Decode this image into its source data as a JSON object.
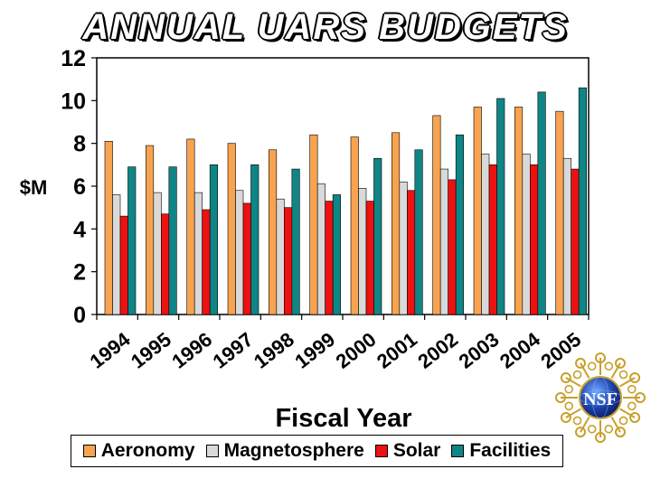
{
  "chart_data": {
    "type": "bar",
    "title": "ANNUAL UARS BUDGETS",
    "xlabel": "Fiscal Year",
    "ylabel": "$M",
    "ylim": [
      0,
      12
    ],
    "yticks": [
      "0",
      "2",
      "4",
      "6",
      "8",
      "10",
      "12"
    ],
    "categories": [
      "1994",
      "1995",
      "1996",
      "1997",
      "1998",
      "1999",
      "2000",
      "2001",
      "2002",
      "2003",
      "2004",
      "2005"
    ],
    "series": [
      {
        "name": "Aeronomy",
        "color": "#f7a350",
        "values": [
          8.1,
          7.9,
          8.2,
          8.0,
          7.7,
          8.4,
          8.3,
          8.5,
          9.3,
          9.7,
          9.7,
          9.5
        ]
      },
      {
        "name": "Magnetosphere",
        "color": "#d9d9d9",
        "values": [
          5.6,
          5.7,
          5.7,
          5.8,
          5.4,
          6.1,
          5.9,
          6.2,
          6.8,
          7.5,
          7.5,
          7.3
        ]
      },
      {
        "name": "Solar",
        "color": "#ee1111",
        "values": [
          4.6,
          4.7,
          4.9,
          5.2,
          5.0,
          5.3,
          5.3,
          5.8,
          6.3,
          7.0,
          7.0,
          6.8
        ]
      },
      {
        "name": "Facilities",
        "color": "#108585",
        "values": [
          6.9,
          6.9,
          7.0,
          7.0,
          6.8,
          5.6,
          7.3,
          7.7,
          8.4,
          10.1,
          10.4,
          10.6
        ]
      }
    ],
    "legend_position": "bottom",
    "grid": false
  },
  "logo": {
    "text": "NSF"
  }
}
